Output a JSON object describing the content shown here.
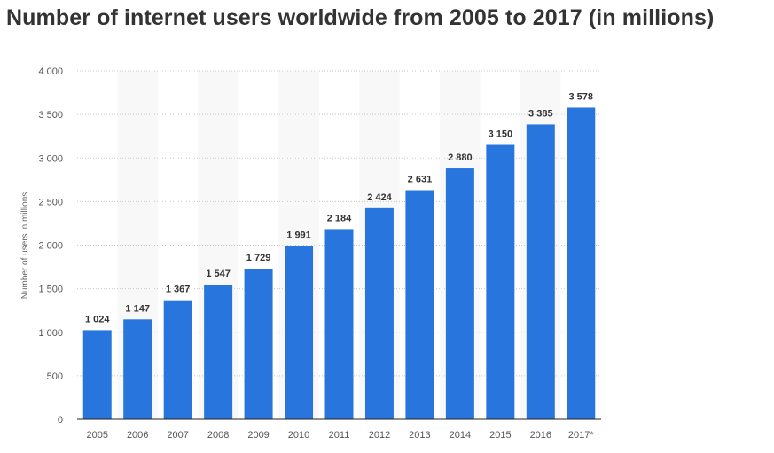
{
  "chart_data": {
    "type": "bar",
    "title": "Number of internet users worldwide from 2005 to 2017 (in millions)",
    "xlabel": "",
    "ylabel": "Number of users in millions",
    "categories": [
      "2005",
      "2006",
      "2007",
      "2008",
      "2009",
      "2010",
      "2011",
      "2012",
      "2013",
      "2014",
      "2015",
      "2016",
      "2017*"
    ],
    "values": [
      1024,
      1147,
      1367,
      1547,
      1729,
      1991,
      2184,
      2424,
      2631,
      2880,
      3150,
      3385,
      3578
    ],
    "value_labels": [
      "1 024",
      "1 147",
      "1 367",
      "1 547",
      "1 729",
      "1 991",
      "2 184",
      "2 424",
      "2 631",
      "2 880",
      "3 150",
      "3 385",
      "3 578"
    ],
    "yticks": [
      0,
      500,
      1000,
      1500,
      2000,
      2500,
      3000,
      3500,
      4000
    ],
    "ytick_labels": [
      "0",
      "500",
      "1 000",
      "1 500",
      "2 000",
      "2 500",
      "3 000",
      "3 500",
      "4 000"
    ],
    "ylim": [
      0,
      4000
    ],
    "grid": true,
    "bar_color": "#2876dd"
  }
}
